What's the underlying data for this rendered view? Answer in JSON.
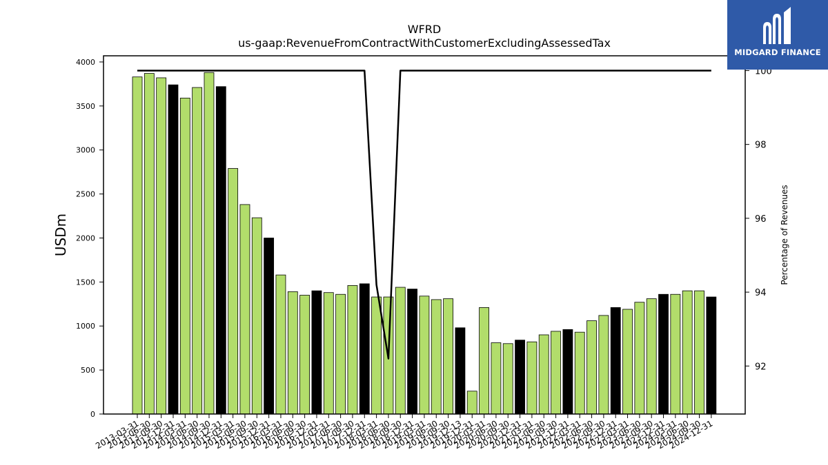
{
  "brand": {
    "name": "MIDGARD FINANCE",
    "color": "#2f5aa8"
  },
  "chart_data": {
    "type": "bar",
    "title": "WFRD",
    "subtitle": "us-gaap:RevenueFromContractWithCustomerExcludingAssessedTax",
    "ylabel": "USDm",
    "y2label": "Percentage of Revenues",
    "ylim": [
      0,
      4070
    ],
    "y2lim": [
      90.7,
      100.4
    ],
    "yticks": [
      0,
      500,
      1000,
      1500,
      2000,
      2500,
      3000,
      3500,
      4000
    ],
    "y2ticks": [
      92,
      94,
      96,
      98,
      100
    ],
    "colors": {
      "quarter": "#b2dd6b",
      "year_end": "#000000",
      "line": "#000000"
    },
    "categories": [
      "2013-03-31",
      "2013-06-30",
      "2013-09-30",
      "2013-12-31",
      "2014-03-31",
      "2014-06-30",
      "2014-09-30",
      "2014-12-31",
      "2015-03-31",
      "2015-06-30",
      "2015-09-30",
      "2015-12-31",
      "2016-03-31",
      "2016-06-30",
      "2016-09-30",
      "2016-12-31",
      "2017-03-31",
      "2017-06-30",
      "2017-09-30",
      "2017-12-31",
      "2018-03-31",
      "2018-06-30",
      "2018-09-30",
      "2018-12-31",
      "2019-03-31",
      "2019-06-30",
      "2019-09-30",
      "2019-12-13",
      "2019-12-31",
      "2020-03-31",
      "2020-06-30",
      "2020-09-30",
      "2020-12-31",
      "2021-03-31",
      "2021-06-30",
      "2021-09-30",
      "2021-12-31",
      "2022-03-31",
      "2022-06-30",
      "2022-09-30",
      "2022-12-31",
      "2023-03-31",
      "2023-06-30",
      "2023-09-30",
      "2023-12-31",
      "2024-03-31",
      "2024-06-30",
      "2024-09-30",
      "2024-12-31"
    ],
    "series": [
      {
        "values": [
          3830,
          3870,
          3820,
          3740,
          3590,
          3710,
          3880,
          3720,
          2790,
          2380,
          2230,
          2000,
          1580,
          1390,
          1350,
          1400,
          1380,
          1360,
          1460,
          1480,
          1330,
          1330,
          1440,
          1420,
          1340,
          1300,
          1310,
          980,
          260,
          1210,
          810,
          800,
          840,
          820,
          900,
          940,
          960,
          930,
          1060,
          1120,
          1210,
          1190,
          1270,
          1310,
          1360,
          1360,
          1400,
          1400,
          1330
        ],
        "year_end": [
          false,
          false,
          false,
          true,
          false,
          false,
          false,
          true,
          false,
          false,
          false,
          true,
          false,
          false,
          false,
          true,
          false,
          false,
          false,
          true,
          false,
          false,
          false,
          true,
          false,
          false,
          false,
          true,
          false,
          false,
          false,
          false,
          true,
          false,
          false,
          false,
          true,
          false,
          false,
          false,
          true,
          false,
          false,
          false,
          true,
          false,
          false,
          false,
          true
        ]
      },
      {
        "axis": "right",
        "type": "line",
        "x": [
          "2013-03-31",
          "2017-09-30",
          "2017-12-31",
          "2018-03-31",
          "2018-06-30",
          "2018-09-30",
          "2024-12-31"
        ],
        "values": [
          100,
          100,
          100,
          94.2,
          92.2,
          100,
          100
        ]
      }
    ]
  }
}
